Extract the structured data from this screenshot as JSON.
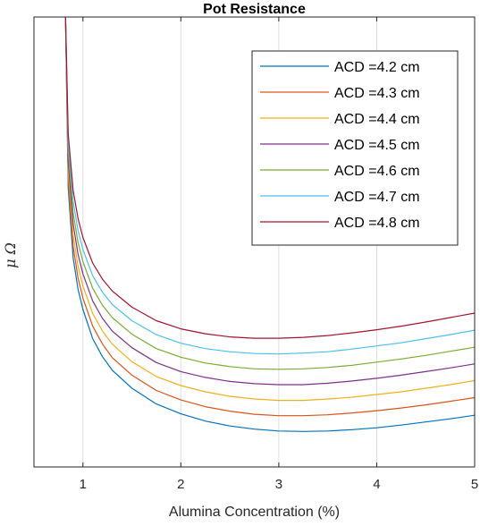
{
  "chart_data": {
    "type": "line",
    "title": "Pot Resistance",
    "xlabel": "Alumina Concentration (%)",
    "ylabel": "μ Ω",
    "xlim": [
      0.5,
      5
    ],
    "xticks": [
      "1",
      "2",
      "3",
      "4",
      "5"
    ],
    "ylim": [
      0,
      1
    ],
    "yticks": [],
    "grid": "vertical",
    "legend": "top-right",
    "x": [
      0.82,
      0.85,
      0.9,
      0.95,
      1.0,
      1.1,
      1.2,
      1.3,
      1.5,
      1.75,
      2.0,
      2.25,
      2.5,
      2.75,
      3.0,
      3.25,
      3.5,
      3.75,
      4.0,
      4.25,
      4.5,
      4.75,
      5.0
    ],
    "series": [
      {
        "name": "ACD =4.2 cm",
        "color": "#0072BD",
        "values": [
          1.02,
          0.62,
          0.465,
          0.395,
          0.35,
          0.285,
          0.245,
          0.215,
          0.175,
          0.14,
          0.118,
          0.102,
          0.091,
          0.084,
          0.08,
          0.079,
          0.08,
          0.083,
          0.087,
          0.093,
          0.1,
          0.107,
          0.115
        ]
      },
      {
        "name": "ACD =4.3 cm",
        "color": "#D95319",
        "values": [
          1.02,
          0.64,
          0.49,
          0.42,
          0.375,
          0.313,
          0.273,
          0.243,
          0.204,
          0.17,
          0.149,
          0.134,
          0.124,
          0.117,
          0.114,
          0.114,
          0.116,
          0.12,
          0.125,
          0.131,
          0.138,
          0.146,
          0.154
        ]
      },
      {
        "name": "ACD =4.4 cm",
        "color": "#EDB120",
        "values": [
          1.02,
          0.66,
          0.515,
          0.447,
          0.402,
          0.341,
          0.302,
          0.273,
          0.234,
          0.201,
          0.181,
          0.167,
          0.157,
          0.151,
          0.148,
          0.148,
          0.151,
          0.155,
          0.161,
          0.167,
          0.175,
          0.183,
          0.192
        ]
      },
      {
        "name": "ACD =4.5 cm",
        "color": "#7E2F8E",
        "values": [
          1.02,
          0.68,
          0.54,
          0.473,
          0.429,
          0.369,
          0.33,
          0.302,
          0.265,
          0.232,
          0.212,
          0.199,
          0.19,
          0.185,
          0.183,
          0.183,
          0.186,
          0.191,
          0.197,
          0.204,
          0.212,
          0.22,
          0.229
        ]
      },
      {
        "name": "ACD =4.6 cm",
        "color": "#77AC30",
        "values": [
          1.02,
          0.7,
          0.565,
          0.499,
          0.456,
          0.397,
          0.359,
          0.332,
          0.295,
          0.263,
          0.244,
          0.231,
          0.223,
          0.218,
          0.217,
          0.218,
          0.221,
          0.226,
          0.233,
          0.24,
          0.248,
          0.257,
          0.266
        ]
      },
      {
        "name": "ACD =4.7 cm",
        "color": "#4DBEEE",
        "values": [
          1.02,
          0.72,
          0.59,
          0.526,
          0.483,
          0.425,
          0.388,
          0.361,
          0.325,
          0.294,
          0.275,
          0.263,
          0.256,
          0.252,
          0.251,
          0.253,
          0.256,
          0.262,
          0.269,
          0.276,
          0.285,
          0.294,
          0.304
        ]
      },
      {
        "name": "ACD =4.8 cm",
        "color": "#A2142F",
        "values": [
          1.02,
          0.74,
          0.615,
          0.552,
          0.51,
          0.453,
          0.417,
          0.391,
          0.355,
          0.325,
          0.307,
          0.296,
          0.289,
          0.286,
          0.286,
          0.288,
          0.292,
          0.298,
          0.305,
          0.313,
          0.322,
          0.332,
          0.342
        ]
      }
    ]
  }
}
